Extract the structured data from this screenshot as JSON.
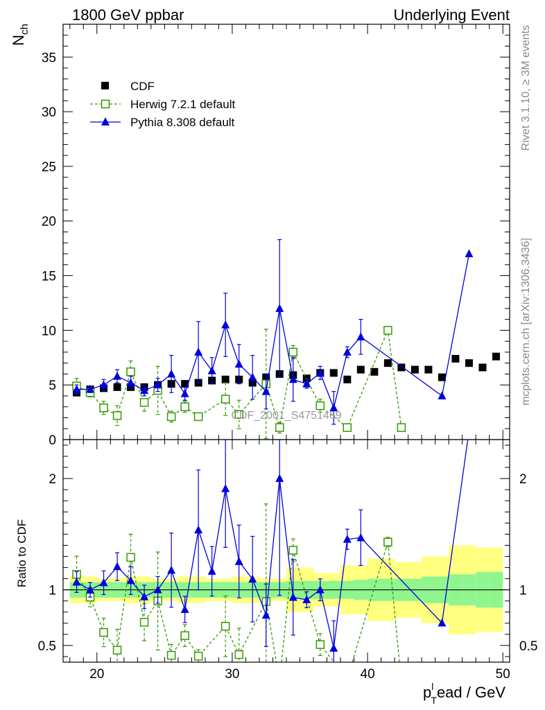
{
  "header": {
    "left_title": "1800 GeV ppbar",
    "right_title": "Underlying Event"
  },
  "side_labels": {
    "rivet": "Rivet 3.1.10, ≥ 3M events",
    "mcplots": "mcplots.cern.ch [arXiv:1306.3436]"
  },
  "watermark": "CDF_2001_S4751469",
  "chart_data": {
    "type": "scatter",
    "xlabel_main": "p",
    "xlabel_sub": "T",
    "xlabel_sup": "l",
    "xlabel_rest": "ead / GeV",
    "ylabel_main": "N",
    "ylabel_sub": "ch",
    "ratio_ylabel": "Ratio to CDF",
    "xlim": [
      17.5,
      50.5
    ],
    "ylim_main": [
      0,
      38
    ],
    "ylim_ratio": [
      0.35,
      2.35
    ],
    "x_ticks": [
      "20",
      "30",
      "40",
      "50"
    ],
    "y_ticks_main": [
      "0",
      "5",
      "10",
      "15",
      "20",
      "25",
      "30",
      "35"
    ],
    "y_ticks_ratio": [
      "0.5",
      "1",
      "2"
    ],
    "legend": {
      "placement": "top-left",
      "entries": [
        "CDF",
        "Herwig 7.2.1 default",
        "Pythia 8.308 default"
      ]
    },
    "colors": {
      "cdf": "#000000",
      "herwig": "#339900",
      "pythia": "#0000dd",
      "band_inner": "#8ff58f",
      "band_outer": "#ffff80"
    },
    "cdf": {
      "x": [
        18.5,
        19.5,
        20.5,
        21.5,
        22.5,
        23.5,
        24.5,
        25.5,
        26.5,
        27.5,
        28.5,
        29.5,
        30.5,
        31.5,
        32.5,
        33.5,
        34.5,
        35.5,
        36.5,
        37.5,
        38.5,
        39.5,
        40.5,
        41.5,
        42.5,
        43.5,
        44.5,
        45.5,
        46.5,
        47.5,
        48.5,
        49.5
      ],
      "y": [
        4.3,
        4.6,
        4.7,
        4.8,
        4.8,
        4.8,
        5.0,
        5.1,
        5.1,
        5.2,
        5.4,
        5.5,
        5.5,
        5.2,
        5.7,
        6.0,
        5.9,
        5.6,
        6.1,
        6.1,
        5.5,
        6.4,
        6.2,
        7.0,
        6.6,
        6.4,
        6.4,
        5.7,
        7.4,
        7.0,
        6.6,
        7.6
      ],
      "band_inner": [
        0.07,
        0.07,
        0.07,
        0.07,
        0.07,
        0.07,
        0.07,
        0.07,
        0.07,
        0.07,
        0.07,
        0.07,
        0.07,
        0.07,
        0.07,
        0.07,
        0.08,
        0.08,
        0.08,
        0.08,
        0.08,
        0.09,
        0.1,
        0.1,
        0.1,
        0.1,
        0.12,
        0.12,
        0.14,
        0.14,
        0.16,
        0.16
      ],
      "band_outer": [
        0.12,
        0.12,
        0.1,
        0.1,
        0.12,
        0.12,
        0.1,
        0.1,
        0.12,
        0.12,
        0.1,
        0.1,
        0.12,
        0.12,
        0.1,
        0.1,
        0.2,
        0.2,
        0.15,
        0.15,
        0.22,
        0.22,
        0.28,
        0.28,
        0.25,
        0.25,
        0.3,
        0.3,
        0.4,
        0.4,
        0.38,
        0.38
      ]
    },
    "herwig": {
      "x": [
        18.5,
        19.5,
        20.5,
        21.5,
        22.5,
        23.5,
        24.5,
        25.5,
        26.5,
        27.5,
        29.5,
        30.5,
        32.5,
        33.5,
        34.5,
        36.5,
        38.5,
        41.5,
        42.5
      ],
      "y": [
        4.9,
        4.3,
        2.9,
        2.2,
        6.2,
        3.4,
        4.5,
        2.1,
        3.0,
        2.1,
        3.7,
        2.3,
        5.1,
        1.1,
        8.0,
        3.1,
        1.1,
        10.0,
        1.1
      ],
      "err": [
        0.7,
        0.4,
        0.6,
        0.9,
        1.0,
        0.8,
        2.2,
        0.5,
        0.5,
        0.3,
        1.5,
        1.3,
        5.0,
        0.5,
        0.6,
        0.6,
        0.3,
        0.3,
        0.3
      ]
    },
    "pythia": {
      "x": [
        18.5,
        19.5,
        20.5,
        21.5,
        22.5,
        23.5,
        24.5,
        25.5,
        26.5,
        27.5,
        28.5,
        29.5,
        30.5,
        31.5,
        32.5,
        33.5,
        34.5,
        35.5,
        36.5,
        37.5,
        38.5,
        39.5,
        45.5,
        47.5
      ],
      "y": [
        4.6,
        4.6,
        5.0,
        5.8,
        5.2,
        4.5,
        5.0,
        6.0,
        4.2,
        8.0,
        6.3,
        10.5,
        6.9,
        5.7,
        4.4,
        12.0,
        5.5,
        5.1,
        6.1,
        2.9,
        8.0,
        9.4,
        4.0,
        17.0
      ],
      "err": [
        0.4,
        0.3,
        0.5,
        0.6,
        0.6,
        0.5,
        0.6,
        1.7,
        0.6,
        2.8,
        1.2,
        2.9,
        1.8,
        2.0,
        1.6,
        6.3,
        2.0,
        0.4,
        0.6,
        1.5,
        0.5,
        1.6,
        0.0,
        0.0
      ]
    }
  }
}
